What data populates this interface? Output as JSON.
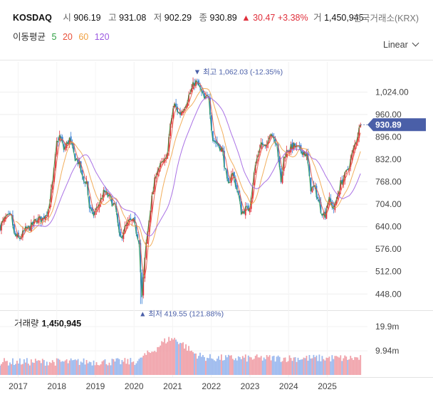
{
  "header": {
    "ticker": "KOSDAQ",
    "open_label": "시",
    "open": "906.19",
    "high_label": "고",
    "high": "931.08",
    "low_label": "저",
    "low": "902.29",
    "close_label": "종",
    "close": "930.89",
    "change": "▲ 30.47",
    "change_pct": "+3.38%",
    "volume_label": "거",
    "volume": "1,450,945",
    "exchange": "한국거래소(KRX)"
  },
  "moving_averages": {
    "label": "이동평균",
    "items": [
      {
        "label": "5",
        "color": "#2ea043"
      },
      {
        "label": "20",
        "color": "#e8503a"
      },
      {
        "label": "60",
        "color": "#f0a040"
      },
      {
        "label": "120",
        "color": "#9b59e0"
      }
    ]
  },
  "scale": {
    "label": "Linear"
  },
  "colors": {
    "up": "#e0303c",
    "down": "#2f7bd6",
    "vol_up": "#f0a0a8",
    "vol_down": "#9ab8ee",
    "price_tag": "#4a5fa8"
  },
  "chart_data": [
    {
      "type": "candlestick",
      "title": "KOSDAQ",
      "x_ticks": [
        "2017",
        "2018",
        "2019",
        "2020",
        "2021",
        "2022",
        "2023",
        "2024",
        "2025"
      ],
      "xlim": [
        2016.55,
        2025.95
      ],
      "y_ticks": [
        "1,024.00",
        "960.00",
        "896.00",
        "832.00",
        "768.00",
        "704.00",
        "640.00",
        "576.00",
        "512.00",
        "448.00"
      ],
      "ylim": [
        410,
        1110
      ],
      "last_price": "930.89",
      "max_label": "▼ 최고 1,062.03 (-12.35%)",
      "min_label": "▲ 최저 419.55 (121.88%)",
      "max_point": {
        "x": 2021.65,
        "y": 1062.03
      },
      "min_point": {
        "x": 2020.22,
        "y": 419.55
      },
      "close_anchors": [
        [
          2016.55,
          640
        ],
        [
          2016.7,
          665
        ],
        [
          2016.85,
          668
        ],
        [
          2016.92,
          615
        ],
        [
          2017.05,
          605
        ],
        [
          2017.2,
          630
        ],
        [
          2017.35,
          640
        ],
        [
          2017.5,
          660
        ],
        [
          2017.65,
          662
        ],
        [
          2017.8,
          690
        ],
        [
          2017.92,
          770
        ],
        [
          2018.02,
          880
        ],
        [
          2018.1,
          900
        ],
        [
          2018.2,
          860
        ],
        [
          2018.35,
          890
        ],
        [
          2018.48,
          840
        ],
        [
          2018.6,
          820
        ],
        [
          2018.7,
          770
        ],
        [
          2018.8,
          770
        ],
        [
          2018.85,
          700
        ],
        [
          2018.95,
          670
        ],
        [
          2019.05,
          690
        ],
        [
          2019.25,
          740
        ],
        [
          2019.4,
          720
        ],
        [
          2019.55,
          690
        ],
        [
          2019.65,
          600
        ],
        [
          2019.75,
          630
        ],
        [
          2019.9,
          655
        ],
        [
          2020.0,
          655
        ],
        [
          2020.15,
          600
        ],
        [
          2020.22,
          430
        ],
        [
          2020.32,
          580
        ],
        [
          2020.45,
          700
        ],
        [
          2020.6,
          800
        ],
        [
          2020.75,
          820
        ],
        [
          2020.85,
          830
        ],
        [
          2020.95,
          920
        ],
        [
          2021.05,
          990
        ],
        [
          2021.2,
          960
        ],
        [
          2021.35,
          990
        ],
        [
          2021.5,
          1030
        ],
        [
          2021.6,
          1055
        ],
        [
          2021.7,
          1040
        ],
        [
          2021.85,
          1000
        ],
        [
          2021.95,
          1015
        ],
        [
          2022.05,
          890
        ],
        [
          2022.15,
          880
        ],
        [
          2022.3,
          860
        ],
        [
          2022.45,
          750
        ],
        [
          2022.55,
          800
        ],
        [
          2022.7,
          740
        ],
        [
          2022.8,
          680
        ],
        [
          2022.9,
          690
        ],
        [
          2023.0,
          690
        ],
        [
          2023.15,
          810
        ],
        [
          2023.3,
          880
        ],
        [
          2023.45,
          860
        ],
        [
          2023.55,
          920
        ],
        [
          2023.6,
          900
        ],
        [
          2023.72,
          880
        ],
        [
          2023.82,
          760
        ],
        [
          2023.9,
          840
        ],
        [
          2024.0,
          860
        ],
        [
          2024.15,
          870
        ],
        [
          2024.3,
          860
        ],
        [
          2024.4,
          855
        ],
        [
          2024.5,
          840
        ],
        [
          2024.58,
          750
        ],
        [
          2024.7,
          750
        ],
        [
          2024.85,
          690
        ],
        [
          2024.95,
          670
        ],
        [
          2025.05,
          720
        ],
        [
          2025.2,
          690
        ],
        [
          2025.35,
          760
        ],
        [
          2025.5,
          790
        ],
        [
          2025.6,
          820
        ],
        [
          2025.7,
          860
        ],
        [
          2025.8,
          900
        ],
        [
          2025.88,
          930.89
        ]
      ]
    },
    {
      "type": "bar",
      "title": "거래량",
      "last_value": "1,450,945",
      "y_ticks": [
        "19.9m",
        "9.94m"
      ],
      "ylim": [
        0,
        22000000
      ]
    }
  ]
}
